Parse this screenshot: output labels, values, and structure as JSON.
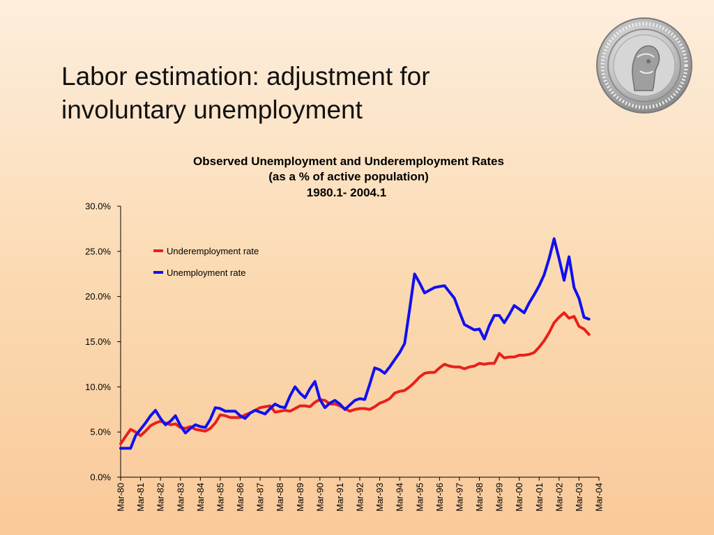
{
  "slide": {
    "title_line1": "Labor estimation: adjustment for",
    "title_line2": "involuntary unemployment"
  },
  "logo": {
    "icon": "coin-seal-logo",
    "colors": [
      "#9a9a9a",
      "#d8d8d8",
      "#6e6e6e"
    ]
  },
  "chart_data": {
    "type": "line",
    "title": "Observed Unemployment and Underemployment Rates",
    "subtitle1": "(as a % of active population)",
    "subtitle2": "1980.1- 2004.1",
    "xlabel": "",
    "ylabel": "",
    "ylim": [
      0,
      30
    ],
    "y_ticks": [
      0,
      5,
      10,
      15,
      20,
      25,
      30
    ],
    "y_tick_labels": [
      "0.0%",
      "5.0%",
      "10.0%",
      "15.0%",
      "20.0%",
      "25.0%",
      "30.0%"
    ],
    "x_tick_labels": [
      "Mar-80",
      "Mar-81",
      "Mar-82",
      "Mar-83",
      "Mar-84",
      "Mar-85",
      "Mar-86",
      "Mar-87",
      "Mar-88",
      "Mar-89",
      "Mar-90",
      "Mar-91",
      "Mar-92",
      "Mar-93",
      "Mar-94",
      "Mar-95",
      "Mar-96",
      "Mar-97",
      "Mar-98",
      "Mar-99",
      "Mar-00",
      "Mar-01",
      "Mar-02",
      "Mar-03",
      "Mar-04"
    ],
    "xlim": [
      1980.0,
      2004.0
    ],
    "grid": false,
    "legend_position": "top-left",
    "series": [
      {
        "name": "Underemployment rate",
        "color": "#e8201a",
        "points": [
          [
            1980.0,
            3.7
          ],
          [
            1980.25,
            4.5
          ],
          [
            1980.5,
            5.3
          ],
          [
            1980.75,
            5.0
          ],
          [
            1981.0,
            4.6
          ],
          [
            1981.25,
            5.1
          ],
          [
            1981.5,
            5.7
          ],
          [
            1981.75,
            6.0
          ],
          [
            1982.0,
            6.2
          ],
          [
            1982.25,
            6.0
          ],
          [
            1982.5,
            5.8
          ],
          [
            1982.75,
            5.9
          ],
          [
            1983.0,
            5.5
          ],
          [
            1983.25,
            5.4
          ],
          [
            1983.5,
            5.6
          ],
          [
            1983.75,
            5.3
          ],
          [
            1984.0,
            5.2
          ],
          [
            1984.25,
            5.1
          ],
          [
            1984.5,
            5.4
          ],
          [
            1984.75,
            6.0
          ],
          [
            1985.0,
            6.9
          ],
          [
            1985.25,
            6.8
          ],
          [
            1985.5,
            6.6
          ],
          [
            1985.75,
            6.6
          ],
          [
            1986.0,
            6.6
          ],
          [
            1986.25,
            6.9
          ],
          [
            1986.5,
            7.1
          ],
          [
            1986.75,
            7.4
          ],
          [
            1987.0,
            7.7
          ],
          [
            1987.25,
            7.8
          ],
          [
            1987.5,
            7.9
          ],
          [
            1987.75,
            7.2
          ],
          [
            1988.0,
            7.3
          ],
          [
            1988.25,
            7.4
          ],
          [
            1988.5,
            7.3
          ],
          [
            1988.75,
            7.6
          ],
          [
            1989.0,
            7.9
          ],
          [
            1989.25,
            7.9
          ],
          [
            1989.5,
            7.8
          ],
          [
            1989.75,
            8.3
          ],
          [
            1990.0,
            8.6
          ],
          [
            1990.25,
            8.5
          ],
          [
            1990.5,
            8.1
          ],
          [
            1990.75,
            8.1
          ],
          [
            1991.0,
            7.9
          ],
          [
            1991.25,
            7.6
          ],
          [
            1991.5,
            7.3
          ],
          [
            1991.75,
            7.5
          ],
          [
            1992.0,
            7.6
          ],
          [
            1992.25,
            7.6
          ],
          [
            1992.5,
            7.5
          ],
          [
            1992.75,
            7.8
          ],
          [
            1993.0,
            8.2
          ],
          [
            1993.25,
            8.4
          ],
          [
            1993.5,
            8.7
          ],
          [
            1993.75,
            9.3
          ],
          [
            1994.0,
            9.5
          ],
          [
            1994.25,
            9.6
          ],
          [
            1994.5,
            10.0
          ],
          [
            1994.75,
            10.5
          ],
          [
            1995.0,
            11.1
          ],
          [
            1995.25,
            11.5
          ],
          [
            1995.5,
            11.6
          ],
          [
            1995.75,
            11.6
          ],
          [
            1996.0,
            12.1
          ],
          [
            1996.25,
            12.5
          ],
          [
            1996.5,
            12.3
          ],
          [
            1996.75,
            12.2
          ],
          [
            1997.0,
            12.2
          ],
          [
            1997.25,
            12.0
          ],
          [
            1997.5,
            12.2
          ],
          [
            1997.75,
            12.3
          ],
          [
            1998.0,
            12.6
          ],
          [
            1998.25,
            12.5
          ],
          [
            1998.5,
            12.6
          ],
          [
            1998.75,
            12.6
          ],
          [
            1999.0,
            13.7
          ],
          [
            1999.25,
            13.2
          ],
          [
            1999.5,
            13.3
          ],
          [
            1999.75,
            13.3
          ],
          [
            2000.0,
            13.5
          ],
          [
            2000.25,
            13.5
          ],
          [
            2000.5,
            13.6
          ],
          [
            2000.75,
            13.8
          ],
          [
            2001.0,
            14.4
          ],
          [
            2001.25,
            15.1
          ],
          [
            2001.5,
            16.0
          ],
          [
            2001.75,
            17.1
          ],
          [
            2002.0,
            17.7
          ],
          [
            2002.25,
            18.2
          ],
          [
            2002.5,
            17.6
          ],
          [
            2002.75,
            17.8
          ],
          [
            2003.0,
            16.7
          ],
          [
            2003.25,
            16.4
          ],
          [
            2003.5,
            15.8
          ]
        ]
      },
      {
        "name": "Unemployment rate",
        "color": "#1010f0",
        "points": [
          [
            1980.0,
            3.2
          ],
          [
            1980.25,
            3.2
          ],
          [
            1980.5,
            3.2
          ],
          [
            1980.75,
            4.6
          ],
          [
            1981.0,
            5.3
          ],
          [
            1981.25,
            6.0
          ],
          [
            1981.5,
            6.8
          ],
          [
            1981.75,
            7.4
          ],
          [
            1982.0,
            6.5
          ],
          [
            1982.25,
            5.8
          ],
          [
            1982.5,
            6.2
          ],
          [
            1982.75,
            6.8
          ],
          [
            1983.0,
            5.7
          ],
          [
            1983.25,
            4.9
          ],
          [
            1983.5,
            5.4
          ],
          [
            1983.75,
            5.8
          ],
          [
            1984.0,
            5.6
          ],
          [
            1984.25,
            5.5
          ],
          [
            1984.5,
            6.4
          ],
          [
            1984.75,
            7.7
          ],
          [
            1985.0,
            7.6
          ],
          [
            1985.25,
            7.3
          ],
          [
            1985.5,
            7.3
          ],
          [
            1985.75,
            7.3
          ],
          [
            1986.0,
            6.8
          ],
          [
            1986.25,
            6.5
          ],
          [
            1986.5,
            7.1
          ],
          [
            1986.75,
            7.4
          ],
          [
            1987.0,
            7.2
          ],
          [
            1987.25,
            7.0
          ],
          [
            1987.5,
            7.6
          ],
          [
            1987.75,
            8.1
          ],
          [
            1988.0,
            7.8
          ],
          [
            1988.25,
            7.7
          ],
          [
            1988.5,
            9.0
          ],
          [
            1988.75,
            10.0
          ],
          [
            1989.0,
            9.3
          ],
          [
            1989.25,
            8.8
          ],
          [
            1989.5,
            9.8
          ],
          [
            1989.75,
            10.6
          ],
          [
            1990.0,
            8.6
          ],
          [
            1990.25,
            7.7
          ],
          [
            1990.5,
            8.2
          ],
          [
            1990.75,
            8.5
          ],
          [
            1991.0,
            8.1
          ],
          [
            1991.25,
            7.5
          ],
          [
            1991.5,
            8.0
          ],
          [
            1991.75,
            8.5
          ],
          [
            1992.0,
            8.7
          ],
          [
            1992.25,
            8.6
          ],
          [
            1992.5,
            10.3
          ],
          [
            1992.75,
            12.1
          ],
          [
            1993.0,
            11.9
          ],
          [
            1993.25,
            11.5
          ],
          [
            1993.5,
            12.2
          ],
          [
            1993.75,
            13.0
          ],
          [
            1994.0,
            13.8
          ],
          [
            1994.25,
            14.8
          ],
          [
            1994.5,
            18.6
          ],
          [
            1994.75,
            22.5
          ],
          [
            1995.0,
            21.5
          ],
          [
            1995.25,
            20.4
          ],
          [
            1995.5,
            20.7
          ],
          [
            1995.75,
            21.0
          ],
          [
            1996.0,
            21.1
          ],
          [
            1996.25,
            21.2
          ],
          [
            1996.5,
            20.5
          ],
          [
            1996.75,
            19.8
          ],
          [
            1997.0,
            18.3
          ],
          [
            1997.25,
            16.9
          ],
          [
            1997.5,
            16.6
          ],
          [
            1997.75,
            16.3
          ],
          [
            1998.0,
            16.4
          ],
          [
            1998.25,
            15.3
          ],
          [
            1998.5,
            16.8
          ],
          [
            1998.75,
            17.9
          ],
          [
            1999.0,
            17.9
          ],
          [
            1999.25,
            17.1
          ],
          [
            1999.5,
            18.0
          ],
          [
            1999.75,
            19.0
          ],
          [
            2000.0,
            18.6
          ],
          [
            2000.25,
            18.2
          ],
          [
            2000.5,
            19.3
          ],
          [
            2000.75,
            20.2
          ],
          [
            2001.0,
            21.2
          ],
          [
            2001.25,
            22.4
          ],
          [
            2001.5,
            24.2
          ],
          [
            2001.75,
            26.4
          ],
          [
            2002.0,
            24.2
          ],
          [
            2002.25,
            21.8
          ],
          [
            2002.5,
            24.4
          ],
          [
            2002.75,
            21.0
          ],
          [
            2003.0,
            19.8
          ],
          [
            2003.25,
            17.7
          ],
          [
            2003.5,
            17.5
          ]
        ]
      }
    ]
  }
}
